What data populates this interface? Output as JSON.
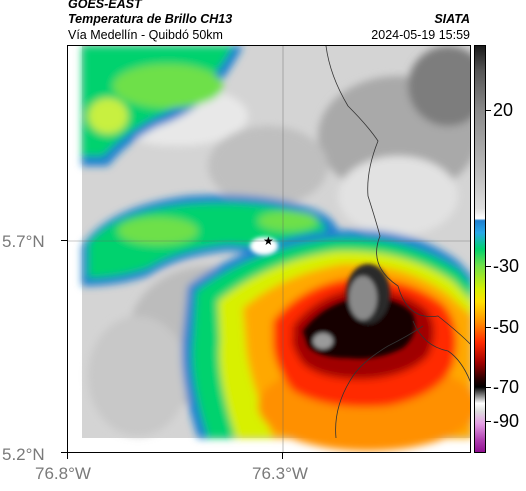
{
  "header": {
    "satellite": "GOES-EAST",
    "product": "Temperatura de Brillo CH13",
    "route": "Vía Medellín - Quibdó 50km",
    "agency": "SIATA",
    "timestamp": "2024-05-19 15:59"
  },
  "axes": {
    "lat_labels": [
      "5.7°N",
      "5.2°N"
    ],
    "lon_labels": [
      "76.8°W",
      "76.3°W"
    ]
  },
  "colorbar": {
    "ticks": [
      "20",
      "-30",
      "-50",
      "-70",
      "-90"
    ]
  },
  "colors": {
    "cold_core": "#1a1a1a",
    "deep_red": "#a00000",
    "red": "#ff2a00",
    "orange": "#ff9000",
    "yellow": "#ffe000",
    "green": "#00d26e",
    "blue": "#1e7fd0",
    "light_gray": "#d8d8d8"
  }
}
